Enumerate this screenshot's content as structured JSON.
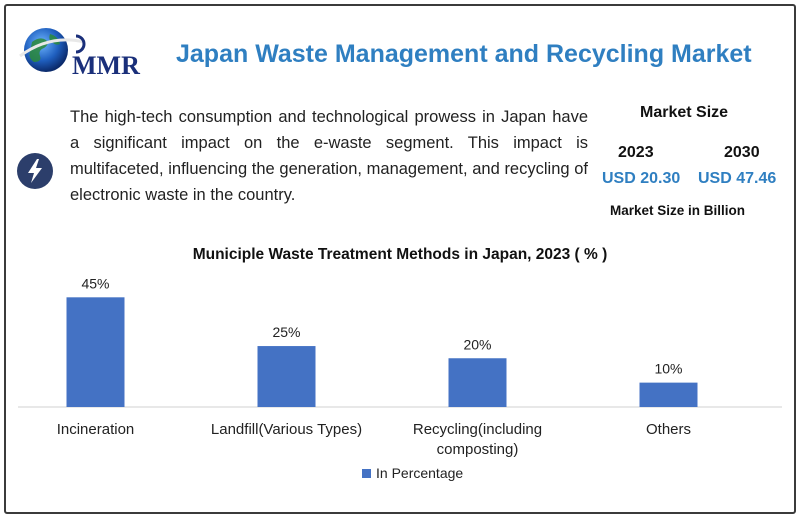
{
  "header": {
    "logo_text": "MMR",
    "title": "Japan Waste Management and Recycling Market"
  },
  "description": "The high-tech consumption and technological prowess in Japan have a significant impact on the e-waste segment. This impact is multifaceted, influencing the generation, management, and recycling of electronic waste in the country.",
  "market_size": {
    "title": "Market Size",
    "years": [
      {
        "year": "2023",
        "value": "USD 20.30"
      },
      {
        "year": "2030",
        "value": "USD 47.46"
      }
    ],
    "footnote": "Market Size in Billion"
  },
  "colors": {
    "accent": "#2f7fc1",
    "bar": "#4472c4",
    "logo_navy": "#1a2f7a"
  },
  "icons": [
    "lightning-bolt-icon",
    "globe-logo-icon"
  ],
  "chart_data": {
    "type": "bar",
    "title": "Municiple Waste Treatment Methods in Japan, 2023 ( % )",
    "categories": [
      [
        "Incineration"
      ],
      [
        "Landfill(Various Types)"
      ],
      [
        "Recycling(including",
        "composting)"
      ],
      [
        "Others"
      ]
    ],
    "series": [
      {
        "name": "In Percentage",
        "values": [
          45,
          25,
          20,
          10
        ],
        "labels": [
          "45%",
          "25%",
          "20%",
          "10%"
        ]
      }
    ],
    "ylim": [
      0,
      48
    ],
    "grid": false,
    "legend": "bottom-center"
  }
}
